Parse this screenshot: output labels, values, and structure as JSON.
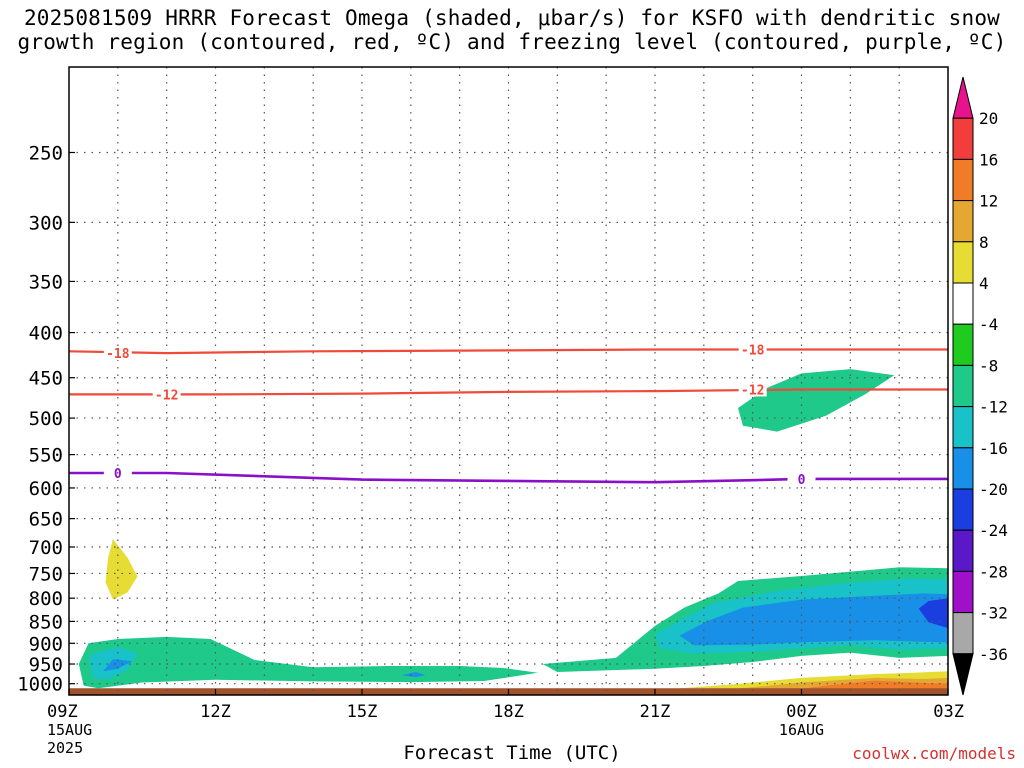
{
  "title_line1": "2025081509 HRRR Forecast Omega (shaded, μbar/s) for KSFO with dendritic snow",
  "title_line2": "growth region (contoured, red, ºC) and freezing level (contoured, purple, ºC)",
  "credit": "coolwx.com/models",
  "colors": {
    "dgz": "#f04a3a",
    "freezing": "#8a10c8",
    "ground": "#a0522d",
    "grid": "#555555"
  },
  "chart_data": {
    "type": "heatmap",
    "xlabel": "Forecast Time (UTC)",
    "x_ticks": [
      {
        "hour": 0,
        "label": "09Z",
        "sub1": "15AUG",
        "sub2": "2025"
      },
      {
        "hour": 3,
        "label": "12Z"
      },
      {
        "hour": 6,
        "label": "15Z"
      },
      {
        "hour": 9,
        "label": "18Z"
      },
      {
        "hour": 12,
        "label": "21Z"
      },
      {
        "hour": 15,
        "label": "00Z",
        "sub1": "16AUG"
      },
      {
        "hour": 18,
        "label": "03Z"
      }
    ],
    "y_ticks": [
      250,
      300,
      350,
      400,
      450,
      500,
      550,
      600,
      650,
      700,
      750,
      800,
      850,
      900,
      950,
      1000
    ],
    "y_range_hpa": [
      200,
      1030
    ],
    "colorbar": {
      "labels": [
        "20",
        "16",
        "12",
        "8",
        "4",
        "-4",
        "-8",
        "-12",
        "-16",
        "-20",
        "-24",
        "-28",
        "-32",
        "-36"
      ],
      "colors": [
        "#e8128c",
        "#f23d3d",
        "#f07c28",
        "#e4a832",
        "#e6dc34",
        "#ffffff",
        "#1fcb1f",
        "#1ec98a",
        "#18c2c8",
        "#1890e8",
        "#1a3ee0",
        "#5a18c8",
        "#a010c8",
        "#a8a8a8",
        "#000000"
      ]
    },
    "contours": [
      {
        "name": "-18",
        "color": "dgz",
        "points": [
          [
            0,
            420
          ],
          [
            2,
            422
          ],
          [
            5,
            420
          ],
          [
            9,
            419
          ],
          [
            12,
            418
          ],
          [
            15,
            418
          ],
          [
            18,
            418
          ]
        ],
        "label_at": [
          [
            1,
            422
          ],
          [
            14,
            418
          ]
        ]
      },
      {
        "name": "-12",
        "color": "dgz",
        "points": [
          [
            0,
            470
          ],
          [
            3,
            470
          ],
          [
            6,
            469
          ],
          [
            9,
            467
          ],
          [
            12,
            466
          ],
          [
            15,
            464
          ],
          [
            18,
            464
          ]
        ],
        "label_at": [
          [
            2,
            470
          ],
          [
            14,
            464
          ]
        ]
      },
      {
        "name": "0",
        "color": "freezing",
        "points": [
          [
            0,
            577
          ],
          [
            2,
            577
          ],
          [
            6,
            587
          ],
          [
            9,
            589
          ],
          [
            12,
            591
          ],
          [
            14,
            588
          ],
          [
            15,
            586
          ],
          [
            18,
            586
          ]
        ],
        "label_at": [
          [
            1,
            577
          ],
          [
            15,
            586
          ]
        ]
      }
    ],
    "regions": [
      {
        "level": "4",
        "pts": [
          [
            17.3,
            287
          ],
          [
            17.8,
            270
          ],
          [
            18,
            262
          ],
          [
            18,
            302
          ],
          [
            17.6,
            298
          ]
        ]
      },
      {
        "level": "-8",
        "pts": [
          [
            13.7,
            487
          ],
          [
            14.3,
            462
          ],
          [
            15,
            445
          ],
          [
            16,
            440
          ],
          [
            16.9,
            447
          ],
          [
            16.3,
            470
          ],
          [
            15.5,
            497
          ],
          [
            14.5,
            518
          ],
          [
            13.8,
            510
          ]
        ]
      },
      {
        "level": "4",
        "pts": [
          [
            0.5,
            630
          ],
          [
            1.2,
            650
          ],
          [
            1.6,
            690
          ],
          [
            1.8,
            742
          ],
          [
            1.5,
            793
          ],
          [
            1.1,
            822
          ],
          [
            0.7,
            840
          ],
          [
            0.4,
            815
          ],
          [
            0.2,
            757
          ],
          [
            0.3,
            690
          ]
        ]
      },
      {
        "level": "8",
        "pts": [
          [
            0.9,
            686
          ],
          [
            1.2,
            720
          ],
          [
            1.4,
            756
          ],
          [
            1.2,
            788
          ],
          [
            0.9,
            803
          ],
          [
            0.75,
            768
          ],
          [
            0.8,
            720
          ]
        ]
      },
      {
        "level": "4",
        "pts": [
          [
            3.1,
            865
          ],
          [
            4,
            832
          ],
          [
            5,
            806
          ],
          [
            6,
            790
          ],
          [
            6.5,
            792
          ],
          [
            7,
            810
          ],
          [
            8,
            818
          ],
          [
            8.9,
            812
          ],
          [
            9.5,
            836
          ],
          [
            8.5,
            845
          ],
          [
            7.5,
            855
          ],
          [
            6,
            875
          ],
          [
            5,
            876
          ],
          [
            4.2,
            880
          ],
          [
            3.4,
            875
          ]
        ]
      },
      {
        "level": "4",
        "pts": [
          [
            11.6,
            712
          ],
          [
            11.9,
            665
          ],
          [
            12.5,
            645
          ],
          [
            13.5,
            628
          ],
          [
            14.5,
            605
          ],
          [
            15.5,
            592
          ],
          [
            16.5,
            586
          ],
          [
            17.3,
            584
          ],
          [
            18,
            578
          ],
          [
            18,
            672
          ],
          [
            17.3,
            648
          ],
          [
            16.5,
            645
          ],
          [
            15.5,
            660
          ],
          [
            14.5,
            680
          ],
          [
            13.5,
            705
          ],
          [
            12.5,
            720
          ],
          [
            12,
            755
          ]
        ]
      },
      {
        "level": "-8",
        "pts": [
          [
            0.3,
            1005
          ],
          [
            0.2,
            950
          ],
          [
            0.4,
            900
          ],
          [
            1,
            890
          ],
          [
            2,
            885
          ],
          [
            2.9,
            890
          ],
          [
            3.8,
            940
          ],
          [
            5,
            958
          ],
          [
            6.5,
            955
          ],
          [
            8,
            955
          ],
          [
            8.9,
            960
          ],
          [
            9.6,
            972
          ],
          [
            8.5,
            993
          ],
          [
            7,
            996
          ],
          [
            5,
            994
          ],
          [
            3,
            990
          ],
          [
            1.5,
            997
          ],
          [
            0.6,
            1012
          ]
        ]
      },
      {
        "level": "-12",
        "pts": [
          [
            0.5,
            985
          ],
          [
            0.4,
            930
          ],
          [
            0.7,
            918
          ],
          [
            1,
            908
          ],
          [
            1.4,
            925
          ],
          [
            1.2,
            965
          ],
          [
            0.8,
            990
          ]
        ]
      },
      {
        "level": "-16",
        "pts": [
          [
            0.7,
            968
          ],
          [
            0.9,
            938
          ],
          [
            1.3,
            943
          ],
          [
            1,
            962
          ]
        ]
      },
      {
        "level": "-16",
        "pts": [
          [
            6.8,
            978
          ],
          [
            7.1,
            970
          ],
          [
            7.3,
            978
          ],
          [
            7.1,
            983
          ]
        ]
      },
      {
        "level": "-8",
        "pts": [
          [
            9.7,
            950
          ],
          [
            11.2,
            935
          ],
          [
            12,
            860
          ],
          [
            12.6,
            820
          ],
          [
            13.3,
            790
          ],
          [
            13.7,
            765
          ],
          [
            15,
            755
          ],
          [
            17,
            738
          ],
          [
            18,
            740
          ],
          [
            18,
            930
          ],
          [
            17,
            935
          ],
          [
            16,
            922
          ],
          [
            15,
            930
          ],
          [
            14,
            945
          ],
          [
            13,
            955
          ],
          [
            12,
            962
          ],
          [
            11,
            966
          ],
          [
            10,
            970
          ]
        ]
      },
      {
        "level": "-12",
        "pts": [
          [
            12,
            880
          ],
          [
            12.5,
            848
          ],
          [
            13.2,
            810
          ],
          [
            14.5,
            785
          ],
          [
            16,
            768
          ],
          [
            17.2,
            760
          ],
          [
            18,
            762
          ],
          [
            18,
            912
          ],
          [
            17,
            915
          ],
          [
            16,
            905
          ],
          [
            15,
            912
          ],
          [
            14,
            920
          ],
          [
            12.8,
            925
          ],
          [
            12.1,
            912
          ]
        ]
      },
      {
        "level": "-16",
        "pts": [
          [
            12.5,
            882
          ],
          [
            13.1,
            848
          ],
          [
            13.8,
            820
          ],
          [
            15,
            803
          ],
          [
            16.5,
            795
          ],
          [
            17.5,
            790
          ],
          [
            18,
            792
          ],
          [
            18,
            898
          ],
          [
            16.5,
            893
          ],
          [
            15.2,
            897
          ],
          [
            14,
            903
          ],
          [
            12.8,
            905
          ]
        ]
      },
      {
        "level": "-20",
        "pts": [
          [
            17.4,
            822
          ],
          [
            17.6,
            806
          ],
          [
            18,
            800
          ],
          [
            18,
            865
          ],
          [
            17.6,
            852
          ]
        ]
      },
      {
        "level": "4",
        "pts": [
          [
            6,
            1030
          ],
          [
            9,
            1012
          ],
          [
            10.5,
            1005
          ],
          [
            11.5,
            1000
          ],
          [
            12.5,
            992
          ],
          [
            14,
            983
          ],
          [
            15,
            972
          ],
          [
            16,
            962
          ],
          [
            17,
            955
          ],
          [
            18,
            950
          ],
          [
            18,
            1030
          ]
        ]
      },
      {
        "level": "8",
        "pts": [
          [
            9.8,
            1030
          ],
          [
            12,
            1017
          ],
          [
            13.5,
            1003
          ],
          [
            15,
            985
          ],
          [
            16.5,
            975
          ],
          [
            17.3,
            972
          ],
          [
            18,
            968
          ],
          [
            18,
            1030
          ]
        ]
      },
      {
        "level": "12",
        "pts": [
          [
            12,
            1030
          ],
          [
            13.5,
            1015
          ],
          [
            15,
            997
          ],
          [
            16.5,
            985
          ],
          [
            17.5,
            988
          ],
          [
            18,
            985
          ],
          [
            18,
            1030
          ]
        ]
      },
      {
        "level": "16",
        "pts": [
          [
            14,
            1030
          ],
          [
            15.5,
            1005
          ],
          [
            16.5,
            992
          ],
          [
            17.5,
            998
          ],
          [
            18,
            1000
          ],
          [
            18,
            1030
          ]
        ]
      }
    ]
  }
}
